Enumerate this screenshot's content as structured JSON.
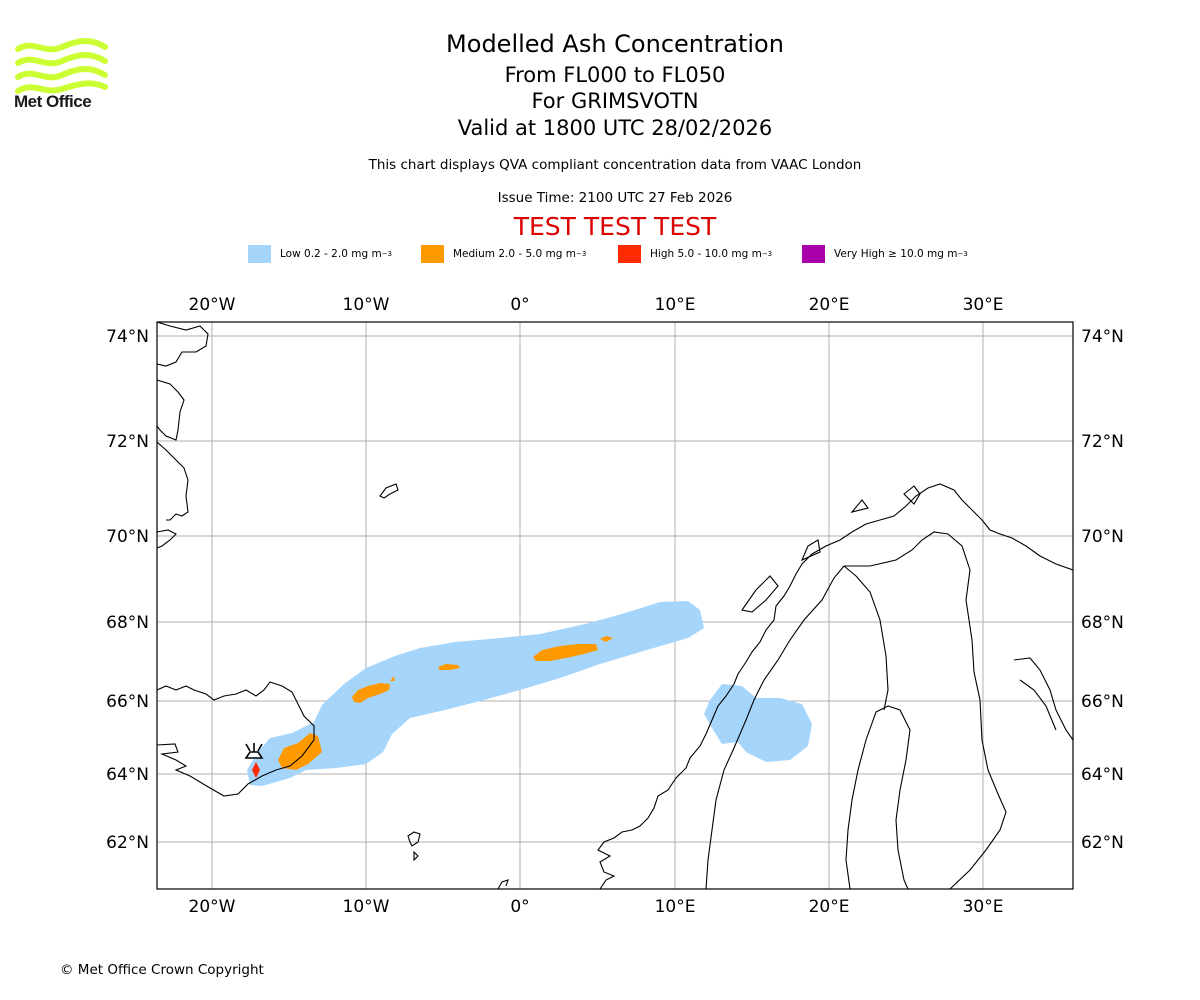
{
  "brand": {
    "name": "Met Office",
    "logo_color": "#ccff33"
  },
  "header": {
    "title": "Modelled Ash Concentration",
    "subtitle_levels": "From FL000 to FL050",
    "subtitle_volcano": "For GRIMSVOTN",
    "subtitle_valid": "Valid at 1800 UTC 28/02/2026",
    "note": "This chart displays QVA compliant concentration data from VAAC London",
    "issue_time": "Issue Time: 2100 UTC 27 Feb 2026",
    "test_banner": "TEST TEST TEST"
  },
  "legend": [
    {
      "label": "Low 0.2 - 2.0 mg m",
      "exponent": "−3",
      "color": "#a6d5fc"
    },
    {
      "label": "Medium 2.0 - 5.0 mg m",
      "exponent": "−3",
      "color": "#ff9900"
    },
    {
      "label": "High 5.0 - 10.0 mg m",
      "exponent": "−3",
      "color": "#ff2a00"
    },
    {
      "label": "Very High  ≥  10.0 mg m",
      "exponent": "−3",
      "color": "#aa00aa"
    }
  ],
  "map": {
    "lon_range": [
      -23.5,
      35.8
    ],
    "lat_range": [
      60.9,
      74.3
    ],
    "lon_labels": [
      "20°W",
      "10°W",
      "0°",
      "10°E",
      "20°E",
      "30°E"
    ],
    "lat_labels": [
      "74°N",
      "72°N",
      "70°N",
      "68°N",
      "66°N",
      "64°N",
      "62°N"
    ],
    "volcano": {
      "name": "GRIMSVOTN",
      "lon": -17.3,
      "lat": 64.4
    }
  },
  "footer": {
    "copyright": "© Met Office Crown Copyright"
  }
}
